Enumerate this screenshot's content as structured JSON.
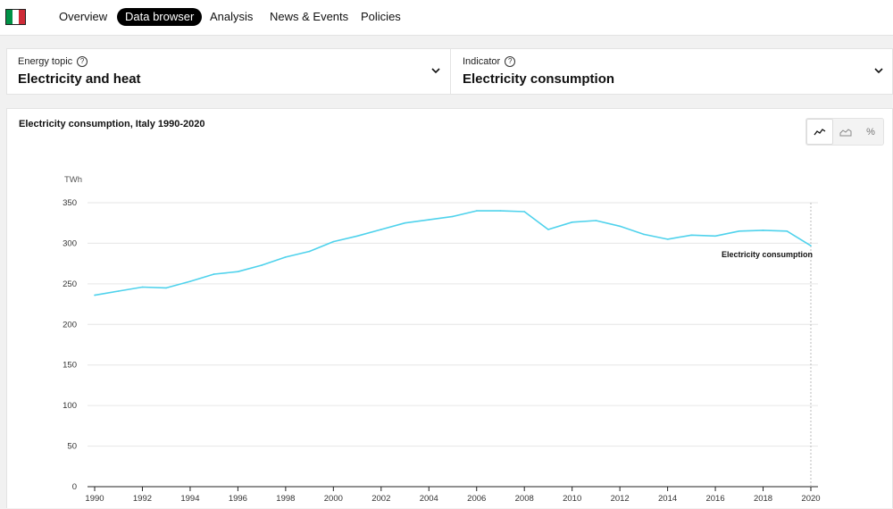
{
  "nav": {
    "items": [
      {
        "label": "Overview"
      },
      {
        "label": "Data browser",
        "active": true
      },
      {
        "label": "Analysis"
      },
      {
        "label": "News & Events"
      },
      {
        "label": "Policies"
      }
    ]
  },
  "flag": {
    "colors": [
      "#009246",
      "#ffffff",
      "#ce2b37"
    ]
  },
  "selectors": {
    "topic": {
      "label": "Energy topic",
      "value": "Electricity and heat",
      "help_icon": "?"
    },
    "indicator": {
      "label": "Indicator",
      "value": "Electricity consumption",
      "help_icon": "?"
    }
  },
  "view_toggles": {
    "items": [
      {
        "icon": "line-chart-icon",
        "active": true
      },
      {
        "icon": "area-chart-icon",
        "active": false
      },
      {
        "icon": "percent-icon",
        "glyph": "%",
        "active": false
      }
    ]
  },
  "chart_data": {
    "type": "line",
    "title": "Electricity consumption, Italy 1990-2020",
    "ylabel": "TWh",
    "ylim": [
      0,
      350
    ],
    "yticks": [
      0,
      50,
      100,
      150,
      200,
      250,
      300,
      350
    ],
    "xticks": [
      1990,
      1992,
      1994,
      1996,
      1998,
      2000,
      2002,
      2004,
      2006,
      2008,
      2010,
      2012,
      2014,
      2016,
      2018,
      2020
    ],
    "grid": true,
    "color": "#4fd2ec",
    "x": [
      1990,
      1991,
      1992,
      1993,
      1994,
      1995,
      1996,
      1997,
      1998,
      1999,
      2000,
      2001,
      2002,
      2003,
      2004,
      2005,
      2006,
      2007,
      2008,
      2009,
      2010,
      2011,
      2012,
      2013,
      2014,
      2015,
      2016,
      2017,
      2018,
      2019,
      2020
    ],
    "series": [
      {
        "name": "Electricity consumption",
        "values": [
          236,
          241,
          246,
          245,
          253,
          262,
          265,
          273,
          283,
          290,
          302,
          309,
          317,
          325,
          329,
          333,
          340,
          340,
          339,
          317,
          326,
          328,
          321,
          311,
          305,
          310,
          309,
          315,
          316,
          315,
          297
        ]
      }
    ]
  }
}
